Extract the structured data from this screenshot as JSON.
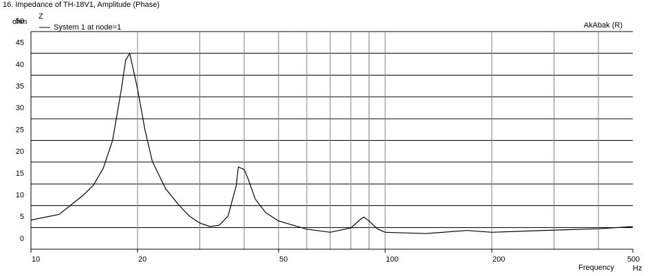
{
  "chart_data": {
    "type": "line",
    "title": "16. Impedance of TH-18V1, Amplitude (Phase)",
    "y_axis_title": "Z",
    "y_unit": "ohm",
    "x_axis_title": "Frequency",
    "x_unit": "Hz",
    "watermark": "AkAbak (R)",
    "x_log": true,
    "grid": true,
    "legend": "top-left",
    "xlim": [
      10,
      500
    ],
    "xticks": [
      10,
      20,
      50,
      100,
      200,
      500
    ],
    "xgrid": [
      20,
      30,
      40,
      50,
      60,
      70,
      80,
      90,
      100,
      200,
      300,
      400
    ],
    "ylim": [
      0,
      50
    ],
    "yticks": [
      0,
      5,
      10,
      15,
      20,
      25,
      30,
      35,
      40,
      45,
      50
    ],
    "x": [
      10,
      12,
      14,
      15,
      16,
      17,
      18,
      18.5,
      19,
      20,
      21,
      22,
      24,
      26,
      28,
      30,
      32,
      34,
      36,
      38,
      38.5,
      40,
      41,
      43,
      46,
      50,
      60,
      70,
      80,
      85,
      87,
      90,
      95,
      100,
      130,
      170,
      200,
      300,
      400,
      500
    ],
    "series": [
      {
        "name": "System 1 at node=1",
        "color": "#000000",
        "values": [
          6.7,
          8.0,
          12.3,
          14.7,
          18.6,
          25,
          36.8,
          43.4,
          45.0,
          36.8,
          27.3,
          20.2,
          13.9,
          10.4,
          7.6,
          6.0,
          5.2,
          5.5,
          7.6,
          14.7,
          18.9,
          18.3,
          16.2,
          11.5,
          8.4,
          6.5,
          4.6,
          3.9,
          4.9,
          6.8,
          7.4,
          6.5,
          4.7,
          3.9,
          3.6,
          4.3,
          3.9,
          4.4,
          4.7,
          5.2
        ]
      }
    ]
  }
}
